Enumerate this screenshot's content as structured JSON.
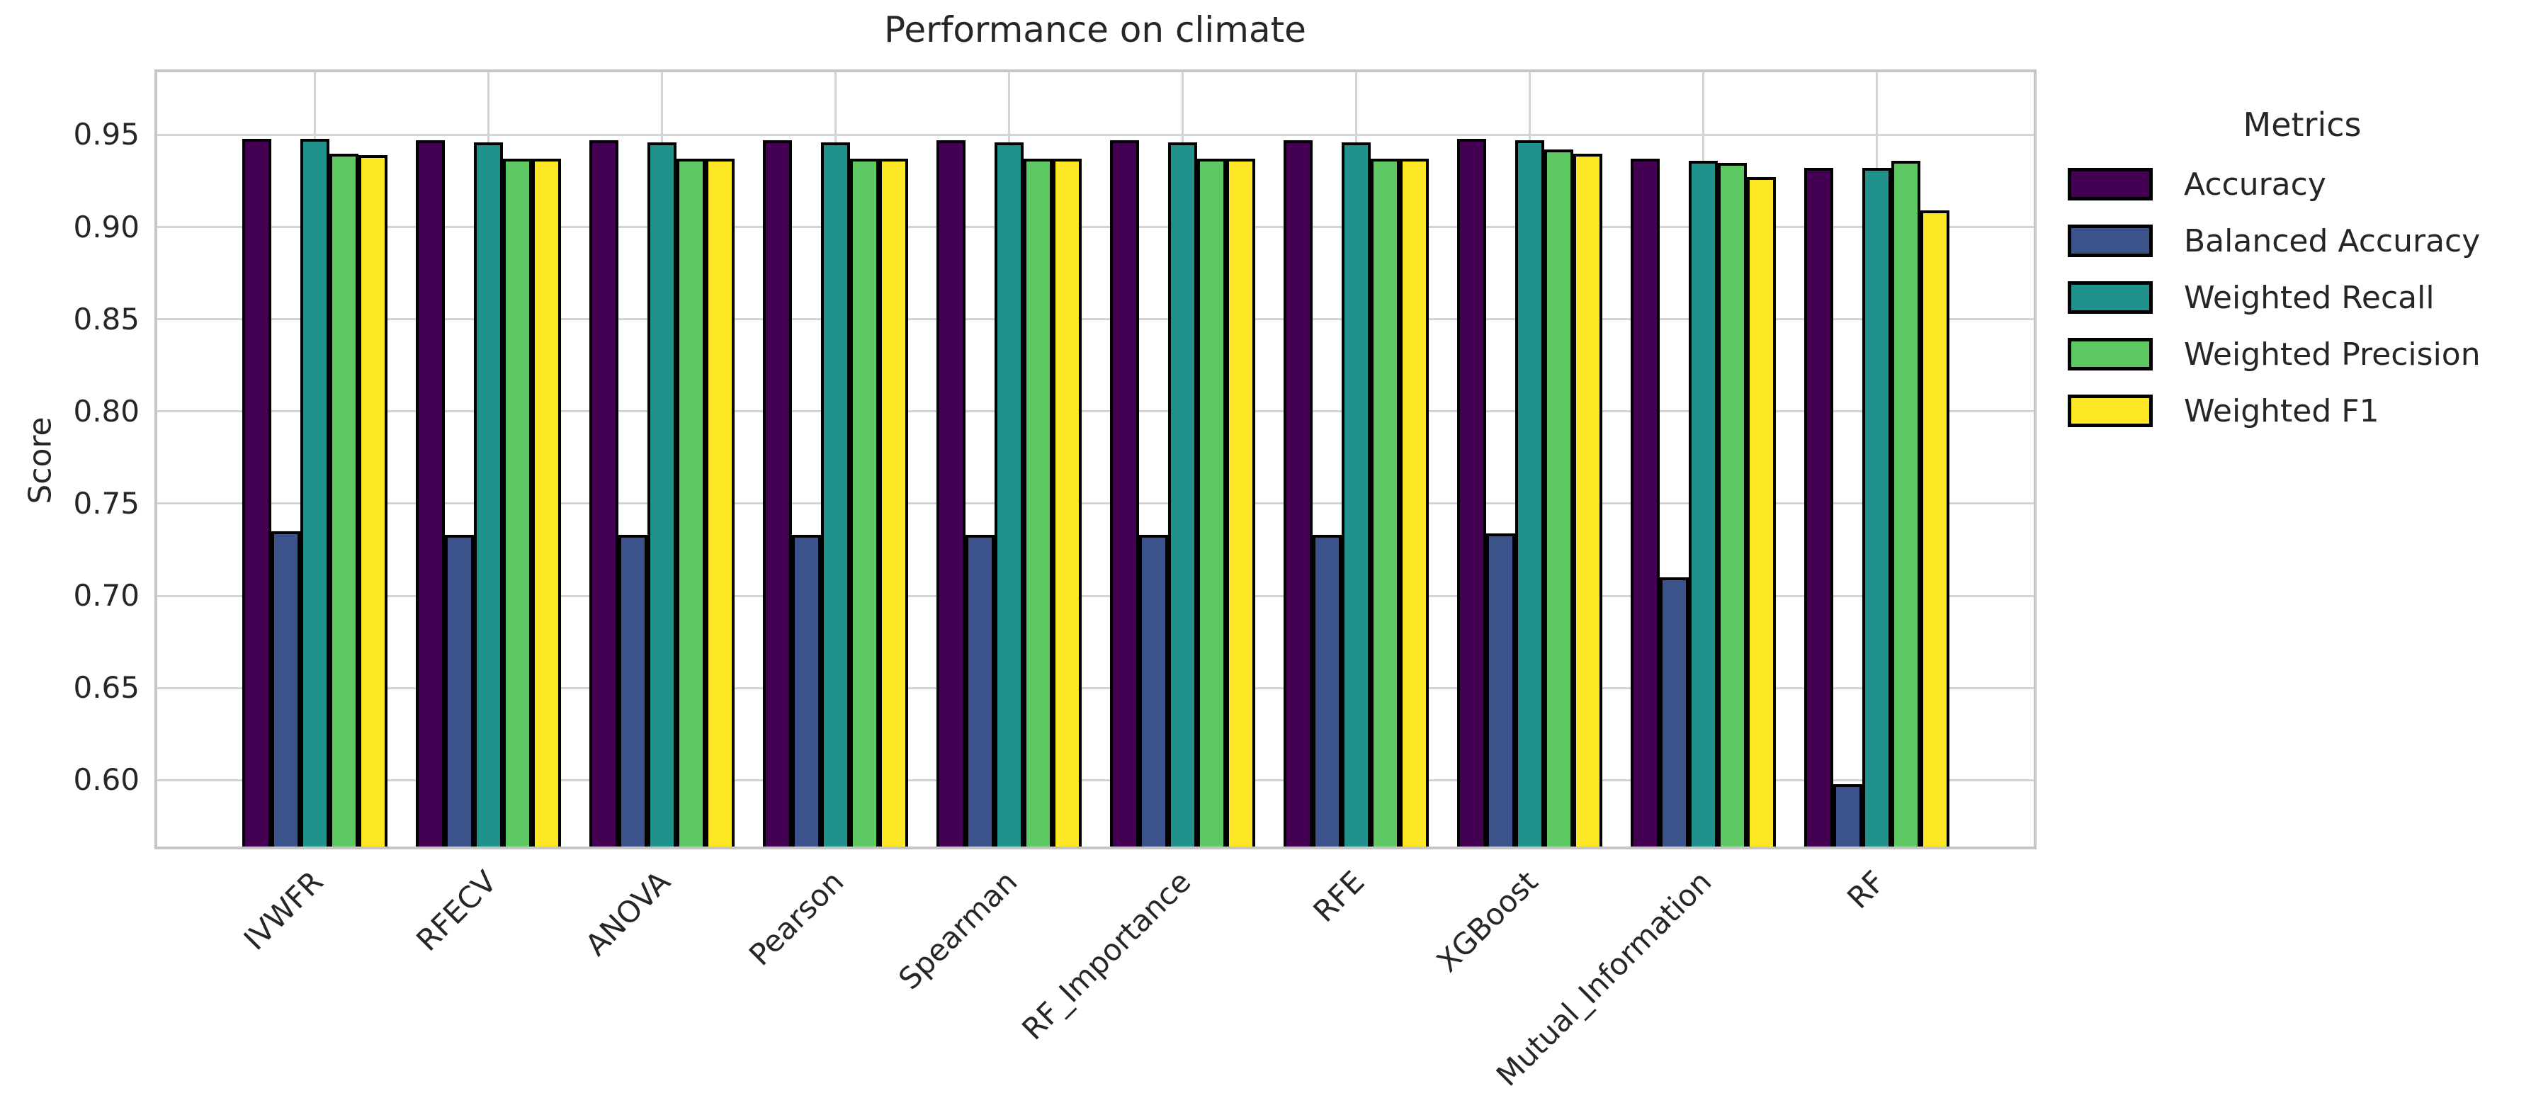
{
  "title": "Performance on climate",
  "ylabel": "Score",
  "legend": {
    "title": "Metrics"
  },
  "colors": {
    "accuracy": "#440154",
    "balanced_accuracy": "#3b528b",
    "weighted_recall": "#21918c",
    "weighted_precision": "#5ec962",
    "weighted_f1": "#fde725",
    "bar_edge": "#000000",
    "grid": "#d4d4d4",
    "frame": "#c6c6c6",
    "text": "#262626"
  },
  "chart_data": {
    "type": "bar",
    "title": "Performance on climate",
    "xlabel": "",
    "ylabel": "Score",
    "grid": true,
    "legend_position": "right",
    "legend_title": "Metrics",
    "ylim": [
      0.564,
      0.984
    ],
    "yticks": [
      0.6,
      0.65,
      0.7,
      0.75,
      0.8,
      0.85,
      0.9,
      0.95
    ],
    "categories": [
      "IVWFR",
      "RFECV",
      "ANOVA",
      "Pearson",
      "Spearman",
      "RF_Importance",
      "RFE",
      "XGBoost",
      "Mutual_Information",
      "RF"
    ],
    "series": [
      {
        "name": "Accuracy",
        "color": "#440154",
        "values": [
          0.948,
          0.947,
          0.947,
          0.947,
          0.947,
          0.947,
          0.947,
          0.948,
          0.937,
          0.932
        ]
      },
      {
        "name": "Balanced Accuracy",
        "color": "#3b528b",
        "values": [
          0.735,
          0.733,
          0.733,
          0.733,
          0.733,
          0.733,
          0.733,
          0.734,
          0.71,
          0.598
        ]
      },
      {
        "name": "Weighted Recall",
        "color": "#21918c",
        "values": [
          0.948,
          0.946,
          0.946,
          0.946,
          0.946,
          0.946,
          0.946,
          0.947,
          0.936,
          0.932
        ]
      },
      {
        "name": "Weighted Precision",
        "color": "#5ec962",
        "values": [
          0.94,
          0.937,
          0.937,
          0.937,
          0.937,
          0.937,
          0.937,
          0.942,
          0.935,
          0.936
        ]
      },
      {
        "name": "Weighted F1",
        "color": "#fde725",
        "values": [
          0.939,
          0.937,
          0.937,
          0.937,
          0.937,
          0.937,
          0.937,
          0.94,
          0.927,
          0.909
        ]
      }
    ]
  }
}
